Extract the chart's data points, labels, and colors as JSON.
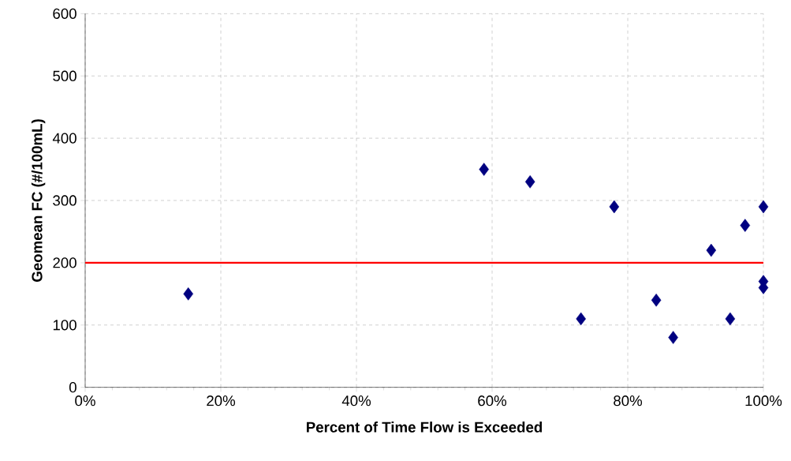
{
  "chart_data": {
    "type": "scatter",
    "xlabel": "Percent of Time Flow is Exceeded",
    "ylabel": "Geomean FC (#/100mL)",
    "x": [
      15.2,
      58.8,
      65.6,
      73.1,
      78.0,
      84.2,
      86.7,
      92.3,
      95.1,
      97.3,
      100,
      100,
      100
    ],
    "values": [
      150,
      350,
      330,
      110,
      290,
      140,
      80,
      220,
      110,
      260,
      290,
      170,
      160
    ],
    "color": "#000080",
    "marker": "diamond",
    "xlim": [
      0,
      100
    ],
    "ylim": [
      0,
      600
    ],
    "xticks": [
      {
        "value": 0,
        "label": "0%"
      },
      {
        "value": 20,
        "label": "20%"
      },
      {
        "value": 40,
        "label": "40%"
      },
      {
        "value": 60,
        "label": "60%"
      },
      {
        "value": 80,
        "label": "80%"
      },
      {
        "value": 100,
        "label": "100%"
      }
    ],
    "yticks": [
      0,
      100,
      200,
      300,
      400,
      500,
      600
    ],
    "grid": true,
    "ref_lines": [
      {
        "axis": "y",
        "value": 200,
        "color": "#ff0000"
      }
    ]
  }
}
